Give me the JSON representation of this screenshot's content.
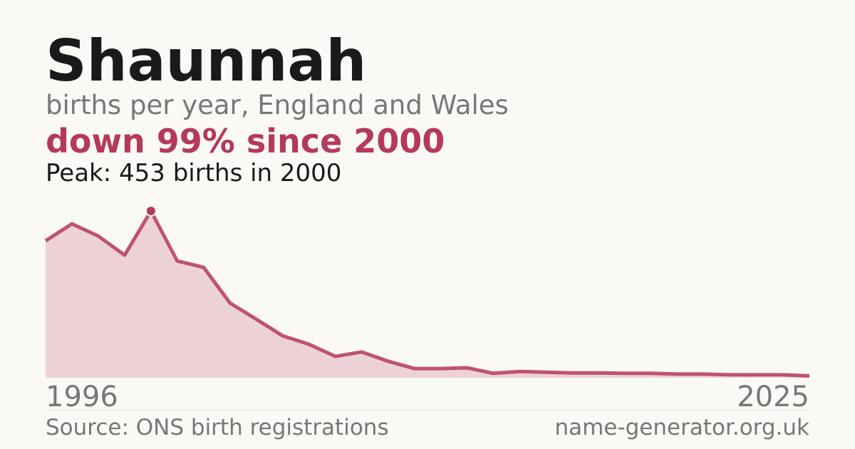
{
  "chart_data": {
    "type": "area",
    "title": "Shaunnah",
    "subtitle": "births per year, England and Wales",
    "headline": "down 99% since 2000",
    "annotation": "Peak: 453 births in 2000",
    "source": "Source: ONS birth registrations",
    "site": "name-generator.org.uk",
    "x": [
      1996,
      1997,
      1998,
      1999,
      2000,
      2001,
      2002,
      2003,
      2004,
      2005,
      2006,
      2007,
      2008,
      2009,
      2010,
      2011,
      2012,
      2013,
      2014,
      2015,
      2016,
      2017,
      2018,
      2019,
      2020,
      2021,
      2022,
      2023,
      2024,
      2025
    ],
    "series": [
      {
        "name": "Shaunnah",
        "color": "#b5395a",
        "values": [
          372,
          418,
          385,
          333,
          453,
          317,
          300,
          203,
          159,
          114,
          91,
          58,
          70,
          45,
          25,
          25,
          27,
          12,
          17,
          15,
          13,
          13,
          12,
          12,
          10,
          10,
          8,
          8,
          8,
          5
        ]
      }
    ],
    "xlim": [
      1996,
      2025
    ],
    "xticks": [
      1996,
      2025
    ],
    "ylim": [
      0,
      453
    ]
  }
}
